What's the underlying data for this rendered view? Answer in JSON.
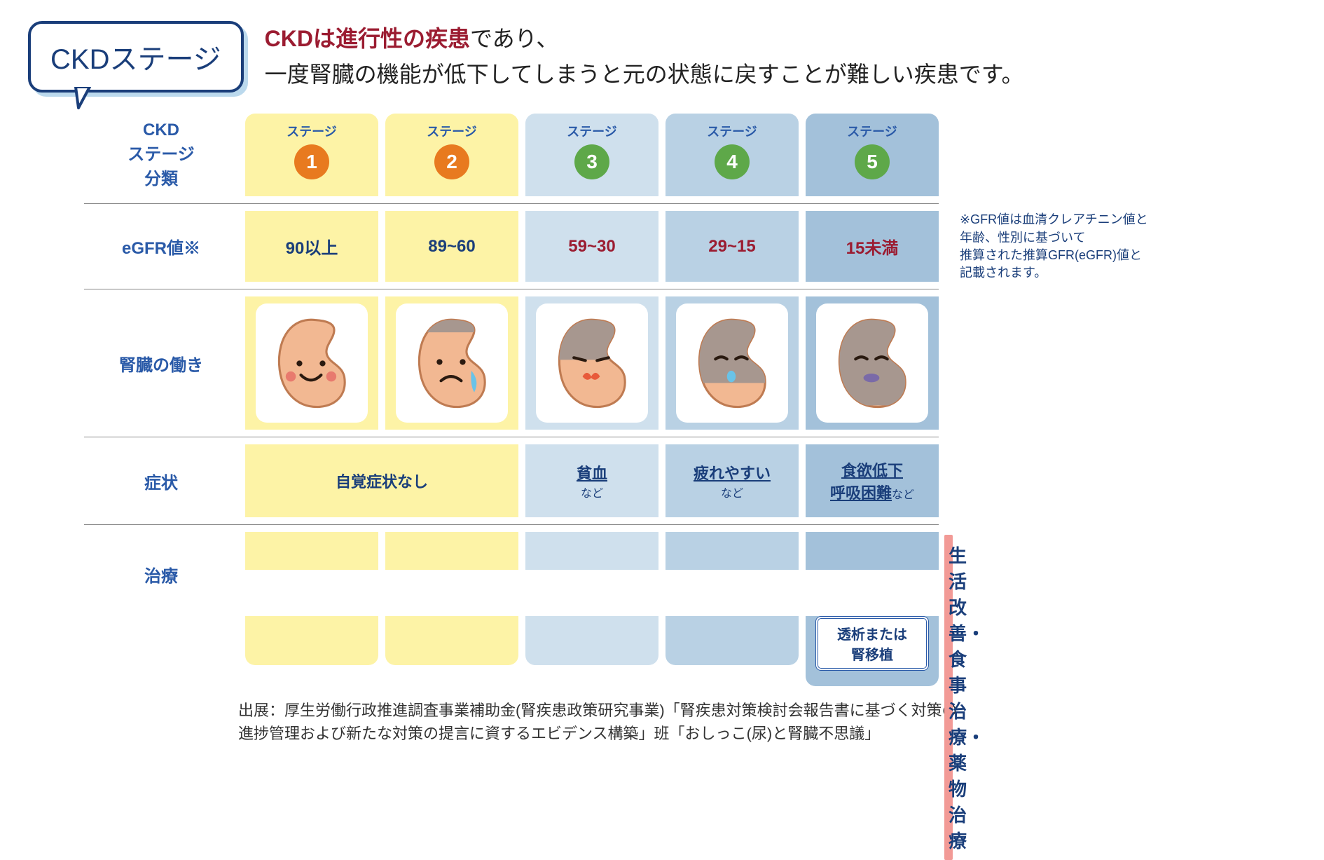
{
  "title_bubble": "CKDステージ",
  "headline_bold": "CKDは進行性の疾患",
  "headline_rest1": "であり、",
  "headline_rest2": "一度腎臓の機能が低下してしまうと元の状態に戻すことが難しい疾患です。",
  "row_labels": {
    "stage": "CKD\nステージ\n分類",
    "egfr": "eGFR値※",
    "kidney": "腎臓の働き",
    "symptom": "症状",
    "treatment": "治療"
  },
  "stage_word": "ステージ",
  "stages": [
    {
      "num": "1",
      "bg": "col-bg-yellow",
      "circle": "circ-orange",
      "egfr": "90以上",
      "egfr_color": "egfr-blue",
      "kidney_damage": 0,
      "face": "happy"
    },
    {
      "num": "2",
      "bg": "col-bg-yellow",
      "circle": "circ-orange",
      "egfr": "89~60",
      "egfr_color": "egfr-blue",
      "kidney_damage": 0.18,
      "face": "sad"
    },
    {
      "num": "3",
      "bg": "col-bg-lblue",
      "circle": "circ-green",
      "egfr": "59~30",
      "egfr_color": "egfr-red",
      "kidney_damage": 0.45,
      "face": "upset"
    },
    {
      "num": "4",
      "bg": "col-bg-mblue",
      "circle": "circ-green",
      "egfr": "29~15",
      "egfr_color": "egfr-red",
      "kidney_damage": 0.68,
      "face": "weak"
    },
    {
      "num": "5",
      "bg": "col-bg-dblue",
      "circle": "circ-green",
      "egfr": "15未満",
      "egfr_color": "egfr-red",
      "kidney_damage": 0.9,
      "face": "dead"
    }
  ],
  "colors": {
    "kidney_healthy": "#f2b892",
    "kidney_damaged": "#a7978f",
    "kidney_outline": "#bf7b52",
    "face_stroke": "#2a1a10",
    "blush": "#e87a6e",
    "tear": "#69c3e8",
    "mouth_red": "#e85a3a",
    "mouth_purple": "#7a6aa8"
  },
  "note": "※GFR値は血清クレアチニン値と\n年齢、性別に基づいて\n推算された推算GFR(eGFR)値と\n記載されます。",
  "symptoms": {
    "merged12": "自覚症状なし",
    "s3_main": "貧血",
    "s3_sub": "など",
    "s4_main": "疲れやすい",
    "s4_sub": "など",
    "s5_main1": "食欲低下",
    "s5_main2": "呼吸困難",
    "s5_sub": "など"
  },
  "treatment_banner": "生活改善・食事治療・薬物治療",
  "dialysis": "透析または\n腎移植",
  "citation": "出展：厚生労働行政推進調査事業補助金(腎疾患政策研究事業)「腎疾患対策検討会報告書に基づく対策の\n進捗管理および新たな対策の提言に資するエビデンス構築」班「おしっこ(尿)と腎臓不思議」"
}
